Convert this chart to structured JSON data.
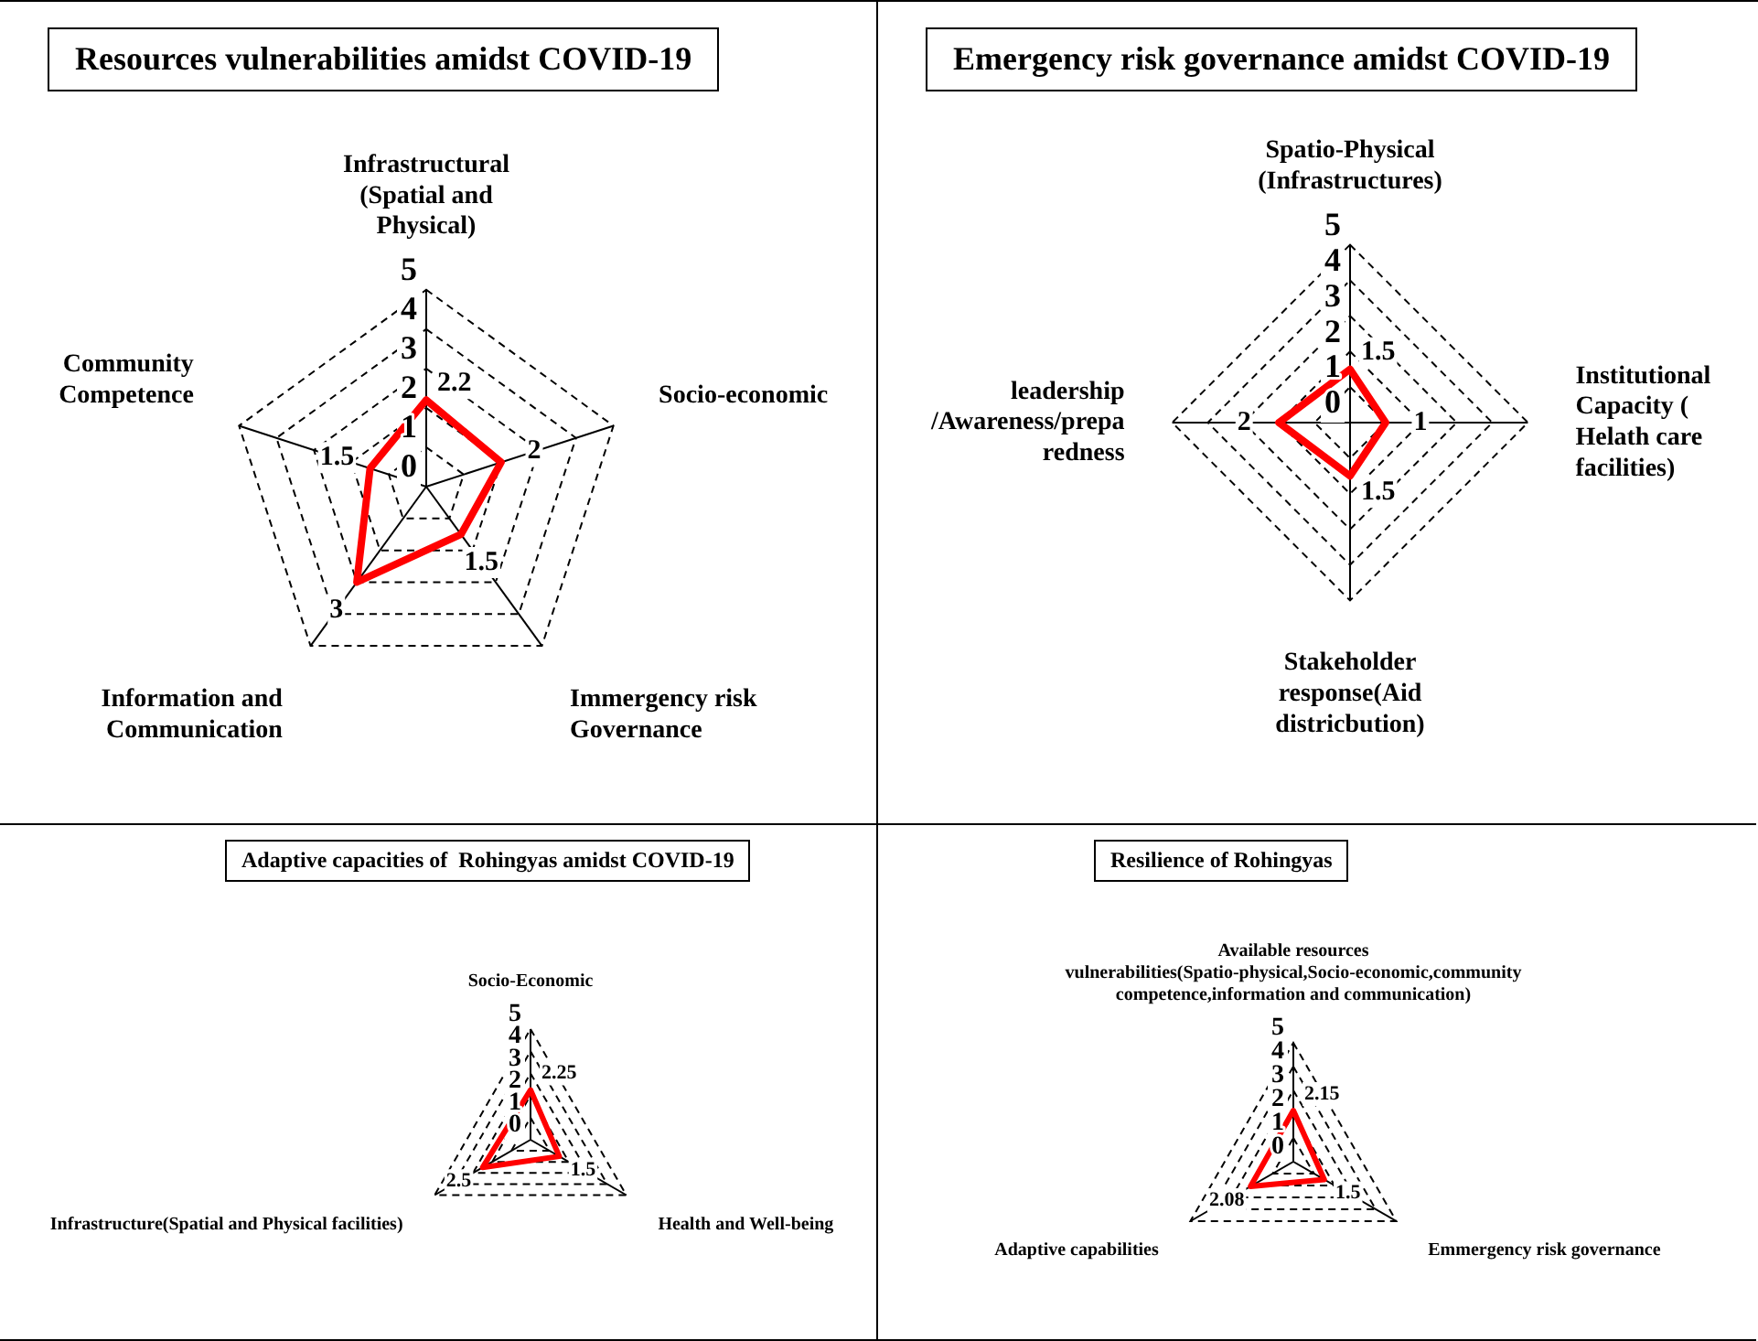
{
  "chart_data": [
    {
      "type": "radar",
      "title": "Resources vulnerabilities amidst COVID-19",
      "categories": [
        "Infrastructural (Spatial and Physical)",
        "Socio-economic",
        "Immergency risk Governance",
        "Information and Communication",
        "Community Competence"
      ],
      "series": [
        {
          "color": "#ff0000",
          "values": [
            2.2,
            2,
            1.5,
            3,
            1.5
          ]
        }
      ],
      "ylim": [
        0,
        5
      ],
      "yticks": [
        0,
        1,
        2,
        3,
        4,
        5
      ],
      "grid": true,
      "legend": false,
      "marker": "none",
      "data_labels": true
    },
    {
      "type": "radar",
      "title": "Emergency risk governance amidst COVID-19",
      "categories": [
        "Spatio-Physical (Infrastructures)",
        "Institutional Capacity ( Helath care facilities)",
        "Stakeholder response(Aid districbution)",
        "leadership /Awareness/preparedness"
      ],
      "series": [
        {
          "color": "#ff0000",
          "values": [
            1.5,
            1,
            1.5,
            2
          ]
        }
      ],
      "ylim": [
        0,
        5
      ],
      "yticks": [
        0,
        1,
        2,
        3,
        4,
        5
      ],
      "grid": true,
      "legend": false,
      "marker": "none",
      "data_labels": true
    },
    {
      "type": "radar",
      "title": "Adaptive capacities of  Rohingyas amidst COVID-19",
      "categories": [
        "Socio-Economic",
        "Health and Well-being",
        "Infrastructure(Spatial and Physical facilities)"
      ],
      "series": [
        {
          "color": "#ff0000",
          "values": [
            2.25,
            1.5,
            2.5
          ]
        }
      ],
      "ylim": [
        0,
        5
      ],
      "yticks": [
        0,
        1,
        2,
        3,
        4,
        5
      ],
      "grid": true,
      "legend": false,
      "marker": "none",
      "data_labels": true
    },
    {
      "type": "radar",
      "title": "Resilience of Rohingyas",
      "categories": [
        "Available resources vulnerabilities(Spatio-physical,Socio-economic,community competence,information and communication)",
        "Emmergency risk governance",
        "Adaptive capabilities"
      ],
      "series": [
        {
          "color": "#ff0000",
          "values": [
            2.15,
            1.5,
            2.08
          ]
        }
      ],
      "ylim": [
        0,
        5
      ],
      "yticks": [
        0,
        1,
        2,
        3,
        4,
        5
      ],
      "grid": true,
      "legend": false,
      "marker": "none",
      "data_labels": true
    }
  ]
}
